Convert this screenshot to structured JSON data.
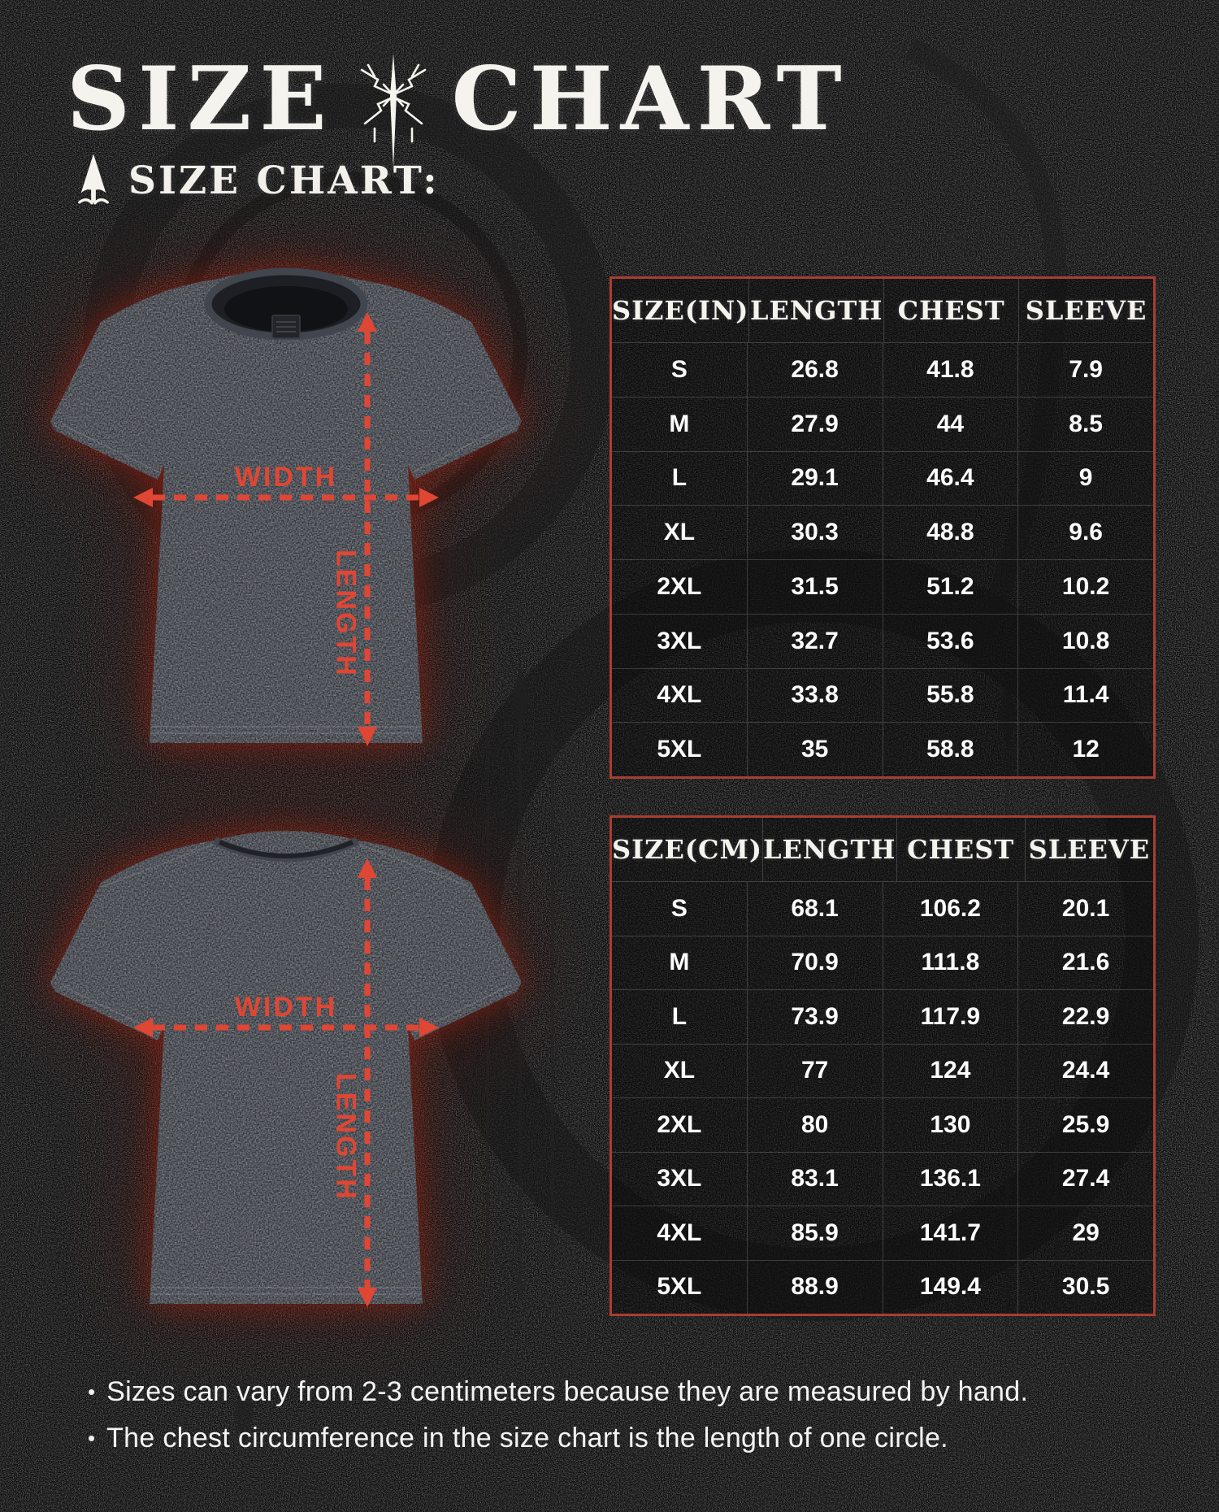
{
  "page": {
    "title_left": "SIZE",
    "title_right": "CHART",
    "subtitle": "SIZE CHART:"
  },
  "icons": {
    "title_sigil": "spiky-star-sigil",
    "subtitle_spire": "spire-arrowhead"
  },
  "measure_labels": {
    "width": "WIDTH",
    "length": "LENGTH"
  },
  "tables": [
    {
      "headers": [
        "SIZE(IN)",
        "LENGTH",
        "CHEST",
        "SLEEVE"
      ],
      "rows": [
        [
          "S",
          "26.8",
          "41.8",
          "7.9"
        ],
        [
          "M",
          "27.9",
          "44",
          "8.5"
        ],
        [
          "L",
          "29.1",
          "46.4",
          "9"
        ],
        [
          "XL",
          "30.3",
          "48.8",
          "9.6"
        ],
        [
          "2XL",
          "31.5",
          "51.2",
          "10.2"
        ],
        [
          "3XL",
          "32.7",
          "53.6",
          "10.8"
        ],
        [
          "4XL",
          "33.8",
          "55.8",
          "11.4"
        ],
        [
          "5XL",
          "35",
          "58.8",
          "12"
        ]
      ]
    },
    {
      "headers": [
        "SIZE(CM)",
        "LENGTH",
        "CHEST",
        "SLEEVE"
      ],
      "rows": [
        [
          "S",
          "68.1",
          "106.2",
          "20.1"
        ],
        [
          "M",
          "70.9",
          "111.8",
          "21.6"
        ],
        [
          "L",
          "73.9",
          "117.9",
          "22.9"
        ],
        [
          "XL",
          "77",
          "124",
          "24.4"
        ],
        [
          "2XL",
          "80",
          "130",
          "25.9"
        ],
        [
          "3XL",
          "83.1",
          "136.1",
          "27.4"
        ],
        [
          "4XL",
          "85.9",
          "141.7",
          "29"
        ],
        [
          "5XL",
          "88.9",
          "149.4",
          "30.5"
        ]
      ]
    }
  ],
  "notes": [
    "Sizes can vary from 2-3 centimeters because they are measured by hand.",
    "The chest circumference in the size chart is the length of one circle."
  ],
  "colors": {
    "accent_red": "#e04634",
    "table_border_red": "#a93d30",
    "text_white": "#f5f3ee",
    "background": "#060606"
  }
}
